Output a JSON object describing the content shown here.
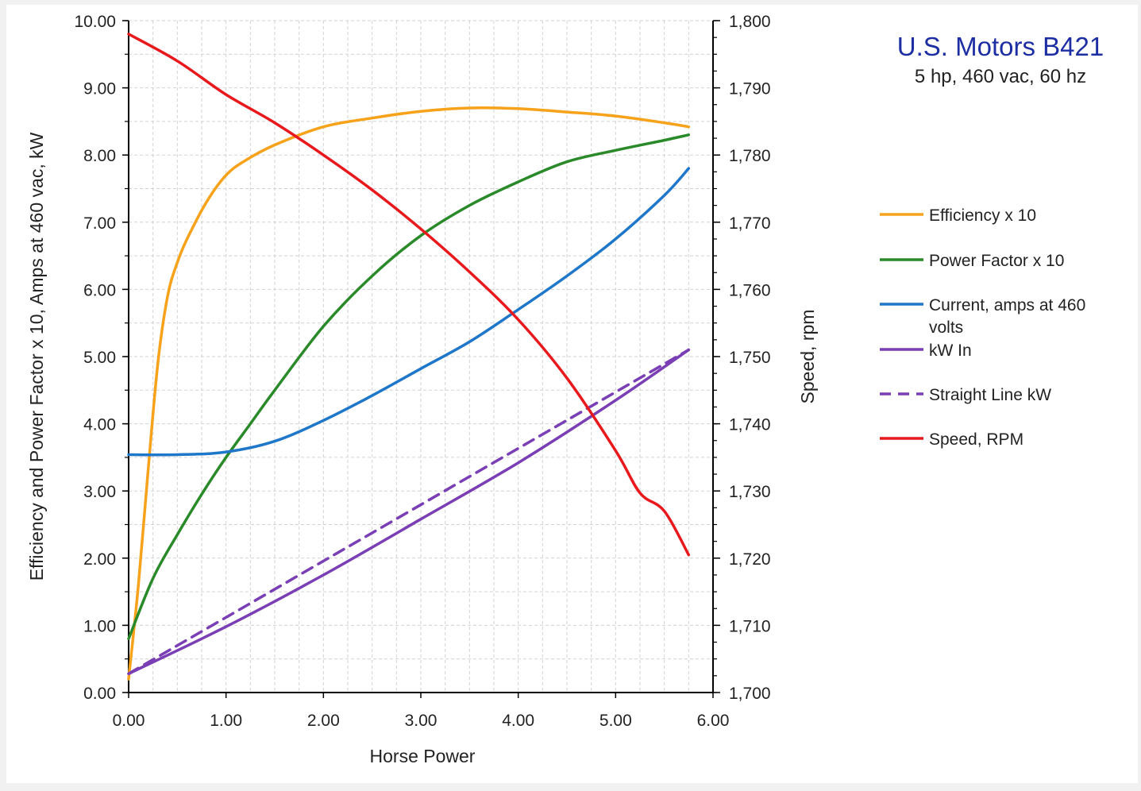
{
  "chart_data": {
    "type": "line",
    "title": "U.S. Motors B421",
    "subtitle": "5 hp, 460 vac, 60 hz",
    "xlabel": "Horse Power",
    "ylabel": "Efficiency  and Power Factor x 10, Amps at 460 vac, kW",
    "y2label": "Speed, rpm",
    "xlim": [
      0,
      6
    ],
    "ylim": [
      0,
      10
    ],
    "y2lim": [
      1700,
      1800
    ],
    "x_ticks": [
      "0.00",
      "1.00",
      "2.00",
      "3.00",
      "4.00",
      "5.00",
      "6.00"
    ],
    "y_ticks": [
      "0.00",
      "1.00",
      "2.00",
      "3.00",
      "4.00",
      "5.00",
      "6.00",
      "7.00",
      "8.00",
      "9.00",
      "10.00"
    ],
    "y2_ticks": [
      "1,700",
      "1,710",
      "1,720",
      "1,730",
      "1,740",
      "1,750",
      "1,760",
      "1,770",
      "1,780",
      "1,790",
      "1,800"
    ],
    "grid": true,
    "legend_position": "right",
    "series": [
      {
        "name": "Efficiency x 10",
        "color": "#f7a21b",
        "dash": false,
        "axis": "left",
        "x": [
          0.0,
          0.1,
          0.2,
          0.3,
          0.4,
          0.5,
          0.6,
          0.8,
          1.0,
          1.2,
          1.5,
          2.0,
          2.5,
          3.0,
          3.5,
          4.0,
          4.5,
          5.0,
          5.5,
          5.75
        ],
        "y": [
          0.2,
          1.6,
          3.3,
          4.9,
          5.9,
          6.4,
          6.75,
          7.3,
          7.7,
          7.92,
          8.15,
          8.42,
          8.55,
          8.65,
          8.7,
          8.69,
          8.64,
          8.58,
          8.48,
          8.42
        ]
      },
      {
        "name": "Power Factor x 10",
        "color": "#2a8a2a",
        "dash": false,
        "axis": "left",
        "x": [
          0.0,
          0.25,
          0.5,
          0.75,
          1.0,
          1.25,
          1.5,
          2.0,
          2.5,
          3.0,
          3.5,
          4.0,
          4.5,
          5.0,
          5.5,
          5.75
        ],
        "y": [
          0.8,
          1.7,
          2.35,
          2.95,
          3.5,
          4.0,
          4.5,
          5.45,
          6.2,
          6.8,
          7.25,
          7.6,
          7.9,
          8.07,
          8.22,
          8.3
        ]
      },
      {
        "name": "Current, amps at 460 volts",
        "color": "#1f77c9",
        "dash": false,
        "axis": "left",
        "x": [
          0.0,
          0.5,
          1.0,
          1.5,
          2.0,
          2.5,
          3.0,
          3.5,
          4.0,
          4.5,
          5.0,
          5.5,
          5.75
        ],
        "y": [
          3.54,
          3.54,
          3.58,
          3.74,
          4.05,
          4.42,
          4.82,
          5.22,
          5.7,
          6.2,
          6.75,
          7.4,
          7.8
        ]
      },
      {
        "name": "kW In",
        "color": "#7a3fb5",
        "dash": false,
        "axis": "left",
        "x": [
          0.0,
          1.0,
          2.0,
          3.0,
          4.0,
          5.0,
          5.75
        ],
        "y": [
          0.28,
          0.98,
          1.75,
          2.58,
          3.42,
          4.35,
          5.1
        ]
      },
      {
        "name": "Straight Line kW",
        "color": "#7a3fb5",
        "dash": true,
        "axis": "left",
        "x": [
          0.0,
          5.75
        ],
        "y": [
          0.28,
          5.1
        ]
      },
      {
        "name": "Speed, RPM",
        "color": "#e8191c",
        "dash": false,
        "axis": "right",
        "x": [
          0.0,
          0.5,
          1.0,
          1.5,
          2.0,
          2.5,
          3.0,
          3.5,
          4.0,
          4.5,
          5.0,
          5.25,
          5.5,
          5.75
        ],
        "y": [
          1798.0,
          1794.0,
          1789.0,
          1784.8,
          1780.0,
          1774.8,
          1769.0,
          1762.6,
          1755.5,
          1746.8,
          1736.0,
          1729.7,
          1727.0,
          1720.5
        ]
      }
    ]
  }
}
